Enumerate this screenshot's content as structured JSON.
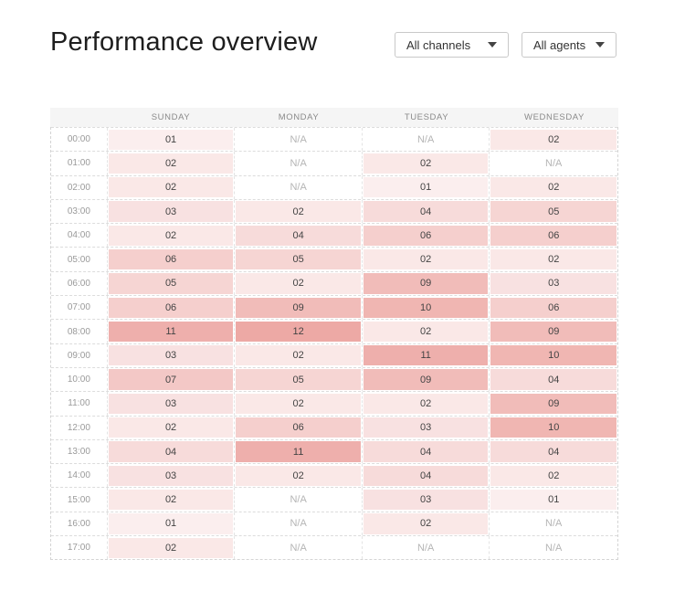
{
  "title": "Performance overview",
  "filters": {
    "channels": "All channels",
    "agents": "All agents"
  },
  "heatmap": {
    "days": [
      "SUNDAY",
      "MONDAY",
      "TUESDAY",
      "WEDNESDAY"
    ],
    "hours": [
      "00:00",
      "01:00",
      "02:00",
      "03:00",
      "04:00",
      "05:00",
      "06:00",
      "07:00",
      "08:00",
      "09:00",
      "10:00",
      "11:00",
      "12:00",
      "13:00",
      "14:00",
      "15:00",
      "16:00",
      "17:00"
    ],
    "values": [
      [
        "01",
        "N/A",
        "N/A",
        "02"
      ],
      [
        "02",
        "N/A",
        "02",
        "N/A"
      ],
      [
        "02",
        "N/A",
        "01",
        "02"
      ],
      [
        "03",
        "02",
        "04",
        "05"
      ],
      [
        "02",
        "04",
        "06",
        "06"
      ],
      [
        "06",
        "05",
        "02",
        "02"
      ],
      [
        "05",
        "02",
        "09",
        "03"
      ],
      [
        "06",
        "09",
        "10",
        "06"
      ],
      [
        "11",
        "12",
        "02",
        "09"
      ],
      [
        "03",
        "02",
        "11",
        "10"
      ],
      [
        "07",
        "05",
        "09",
        "04"
      ],
      [
        "03",
        "02",
        "02",
        "09"
      ],
      [
        "02",
        "06",
        "03",
        "10"
      ],
      [
        "04",
        "11",
        "04",
        "04"
      ],
      [
        "03",
        "02",
        "04",
        "02"
      ],
      [
        "02",
        "N/A",
        "03",
        "01"
      ],
      [
        "01",
        "N/A",
        "02",
        "N/A"
      ],
      [
        "02",
        "N/A",
        "N/A",
        "N/A"
      ]
    ],
    "na_label": "N/A",
    "colors": {
      "low": "#fbeeee",
      "high": "#eda9a5",
      "header_bg": "#f5f5f5"
    }
  }
}
